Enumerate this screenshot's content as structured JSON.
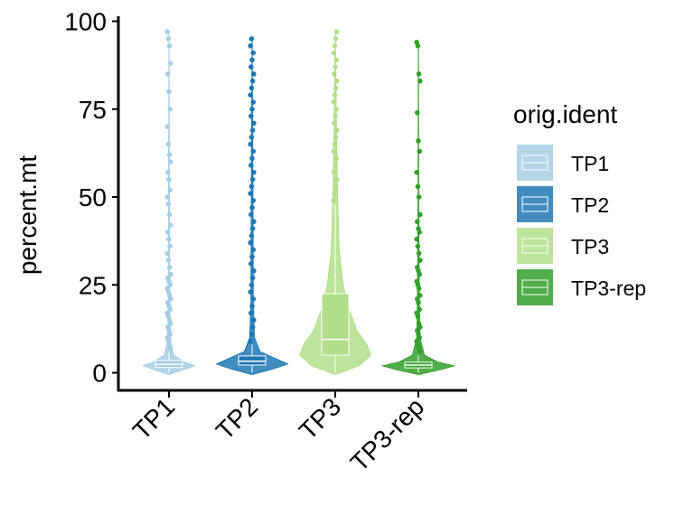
{
  "chart_data": {
    "type": "violin",
    "y_label": "percent.mt",
    "legend_title": "orig.ident",
    "categories": [
      "TP1",
      "TP2",
      "TP3",
      "TP3-rep"
    ],
    "ylim": [
      -5,
      101
    ],
    "yticks": [
      0,
      25,
      50,
      75,
      100
    ],
    "series": [
      {
        "name": "TP1",
        "color": "#a6cee3",
        "box": {
          "whisker_low": 0,
          "q1": 1.5,
          "median": 2.4,
          "q3": 3.5,
          "whisker_high": 6
        },
        "violin": {
          "y": [
            -0.5,
            1,
            2,
            3,
            5,
            8,
            15,
            30,
            60,
            97
          ],
          "width": [
            0,
            0.4,
            0.65,
            0.4,
            0.12,
            0.05,
            0.02,
            0.01,
            0.01,
            0
          ]
        },
        "outliers": [
          97,
          95,
          93,
          88,
          85,
          80,
          75,
          70,
          65,
          62,
          60,
          57,
          55,
          52,
          50,
          48,
          45,
          42,
          40,
          38,
          36,
          34,
          32,
          30,
          28,
          27,
          26,
          25,
          24,
          23,
          22,
          21,
          20,
          19,
          18,
          17,
          16,
          15,
          14,
          13,
          12,
          11,
          10,
          9,
          8,
          7
        ]
      },
      {
        "name": "TP2",
        "color": "#1f78b4",
        "box": {
          "whisker_low": 0,
          "q1": 2.2,
          "median": 3.3,
          "q3": 4.8,
          "whisker_high": 8
        },
        "violin": {
          "y": [
            -0.5,
            1,
            2.5,
            4,
            6,
            10,
            20,
            50,
            95
          ],
          "width": [
            0,
            0.5,
            0.9,
            0.6,
            0.2,
            0.06,
            0.03,
            0.02,
            0
          ]
        },
        "outliers": [
          9,
          11,
          13,
          15,
          17,
          19,
          21,
          23,
          25,
          27,
          29,
          31,
          33,
          35,
          37,
          39,
          41,
          43,
          45,
          47,
          49,
          51,
          53,
          55,
          57,
          59,
          61,
          63,
          65,
          67,
          69,
          71,
          73,
          75,
          77,
          79,
          81,
          83,
          85,
          87,
          89,
          91,
          93,
          95
        ]
      },
      {
        "name": "TP3",
        "color": "#b2df8a",
        "box": {
          "whisker_low": 0,
          "q1": 5,
          "median": 9.5,
          "q3": 22.5,
          "whisker_high": 48
        },
        "violin": {
          "y": [
            -0.5,
            2,
            5,
            8,
            12,
            18,
            25,
            35,
            50,
            70,
            97
          ],
          "width": [
            0,
            0.6,
            0.9,
            0.8,
            0.55,
            0.35,
            0.2,
            0.1,
            0.06,
            0.03,
            0
          ]
        },
        "outliers": [
          49,
          51,
          53,
          55,
          57,
          59,
          61,
          63,
          65,
          67,
          69,
          71,
          73,
          75,
          77,
          79,
          81,
          83,
          85,
          87,
          89,
          91,
          93,
          95,
          97
        ]
      },
      {
        "name": "TP3-rep",
        "color": "#33a02c",
        "box": {
          "whisker_low": 0,
          "q1": 1.4,
          "median": 2.2,
          "q3": 3,
          "whisker_high": 5
        },
        "violin": {
          "y": [
            -0.5,
            1,
            2,
            3,
            5,
            10,
            25,
            45,
            94
          ],
          "width": [
            0,
            0.6,
            0.9,
            0.5,
            0.15,
            0.04,
            0.02,
            0.01,
            0
          ]
        },
        "outliers": [
          94,
          93,
          85,
          83,
          74,
          66,
          63,
          57,
          53,
          50,
          45,
          43,
          41,
          40,
          38,
          36,
          34,
          32,
          30,
          29,
          28,
          26,
          25,
          24,
          22,
          21,
          20,
          18,
          17,
          16,
          14,
          13,
          12,
          11,
          10,
          9,
          8,
          7,
          6
        ]
      }
    ]
  }
}
